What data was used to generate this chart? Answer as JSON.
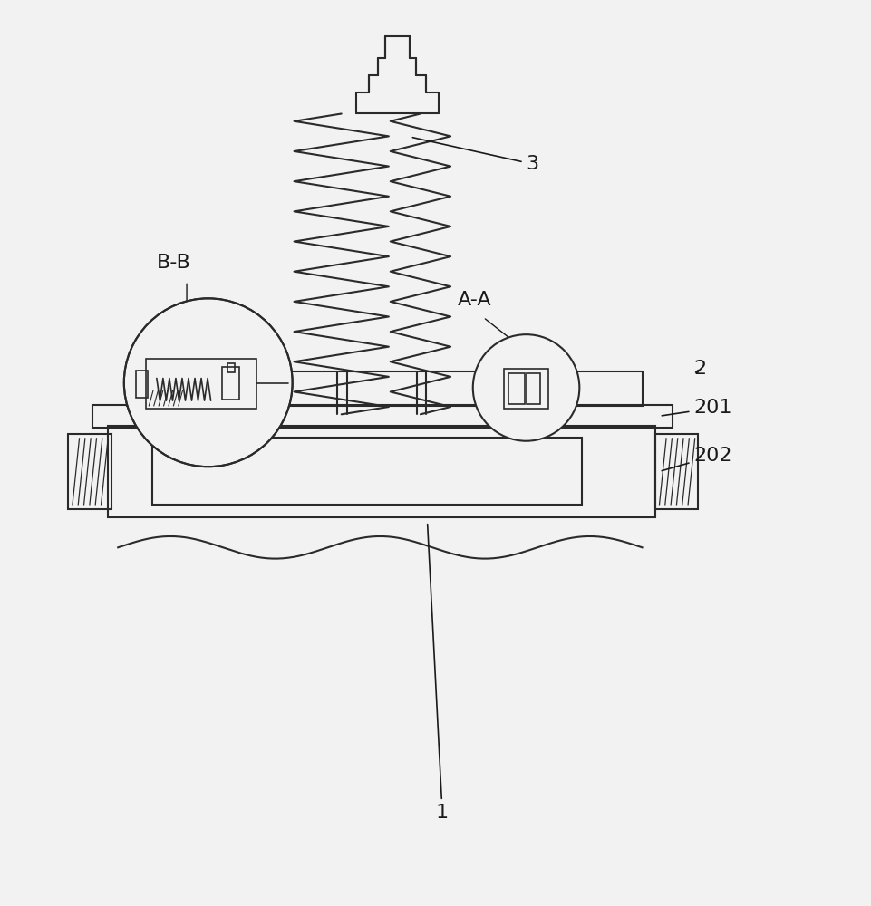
{
  "bg_color": "#f2f2f2",
  "line_color": "#2a2a2a",
  "line_width": 1.5,
  "label_color": "#1a1a1a",
  "label_fontsize": 16,
  "fig_width": 9.62,
  "fig_height": 10.0
}
